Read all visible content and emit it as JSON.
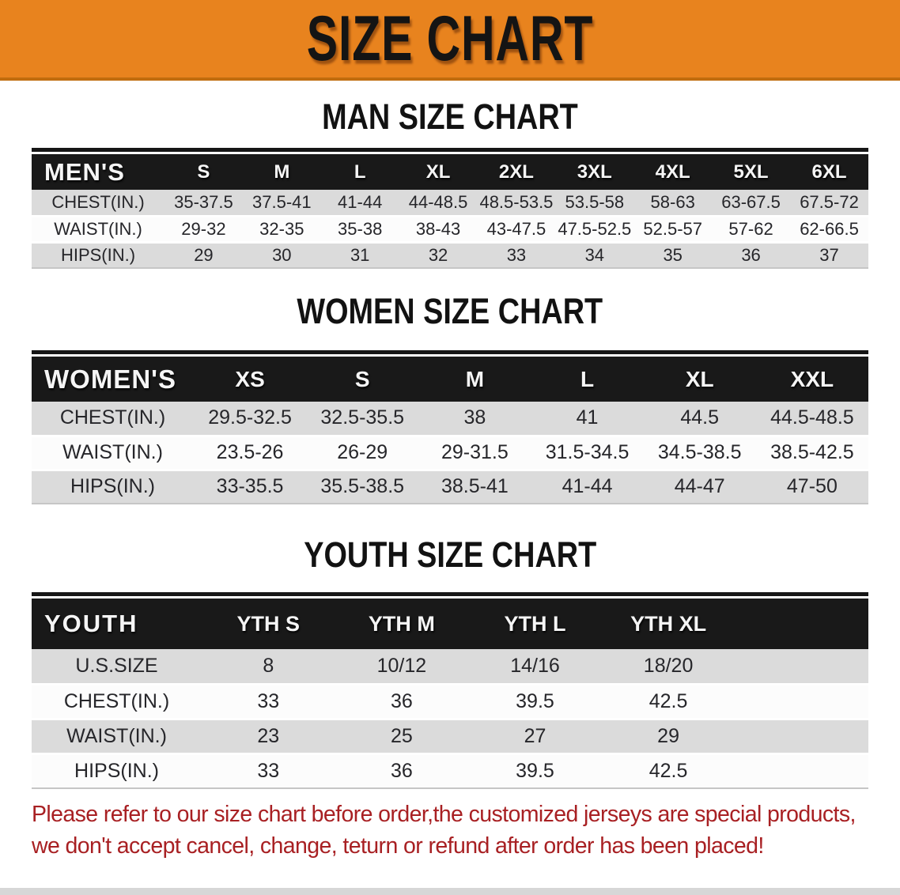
{
  "banner": {
    "title": "SIZE CHART"
  },
  "colors": {
    "banner_orange": "#E8831E",
    "header_black": "#191919",
    "stripe_gray": "#DBDBDB",
    "footer_red": "#A82023"
  },
  "sections": [
    {
      "heading": "MAN SIZE CHART",
      "group_label": "MEN'S",
      "columns": [
        "S",
        "M",
        "L",
        "XL",
        "2XL",
        "3XL",
        "4XL",
        "5XL",
        "6XL"
      ],
      "trailing_empty_column": false,
      "rows": [
        {
          "label": "CHEST(IN.)",
          "values": [
            "35-37.5",
            "37.5-41",
            "41-44",
            "44-48.5",
            "48.5-53.5",
            "53.5-58",
            "58-63",
            "63-67.5",
            "67.5-72"
          ]
        },
        {
          "label": "WAIST(IN.)",
          "values": [
            "29-32",
            "32-35",
            "35-38",
            "38-43",
            "43-47.5",
            "47.5-52.5",
            "52.5-57",
            "57-62",
            "62-66.5"
          ]
        },
        {
          "label": "HIPS(IN.)",
          "values": [
            "29",
            "30",
            "31",
            "32",
            "33",
            "34",
            "35",
            "36",
            "37"
          ]
        }
      ]
    },
    {
      "heading": "WOMEN SIZE CHART",
      "group_label": "WOMEN'S",
      "columns": [
        "XS",
        "S",
        "M",
        "L",
        "XL",
        "XXL"
      ],
      "trailing_empty_column": false,
      "rows": [
        {
          "label": "CHEST(IN.)",
          "values": [
            "29.5-32.5",
            "32.5-35.5",
            "38",
            "41",
            "44.5",
            "44.5-48.5"
          ]
        },
        {
          "label": "WAIST(IN.)",
          "values": [
            "23.5-26",
            "26-29",
            "29-31.5",
            "31.5-34.5",
            "34.5-38.5",
            "38.5-42.5"
          ]
        },
        {
          "label": "HIPS(IN.)",
          "values": [
            "33-35.5",
            "35.5-38.5",
            "38.5-41",
            "41-44",
            "44-47",
            "47-50"
          ]
        }
      ]
    },
    {
      "heading": "YOUTH SIZE CHART",
      "group_label": "YOUTH",
      "columns": [
        "YTH S",
        "YTH M",
        "YTH L",
        "YTH XL"
      ],
      "trailing_empty_column": true,
      "rows": [
        {
          "label": "U.S.SIZE",
          "values": [
            "8",
            "10/12",
            "14/16",
            "18/20"
          ]
        },
        {
          "label": "CHEST(IN.)",
          "values": [
            "33",
            "36",
            "39.5",
            "42.5"
          ]
        },
        {
          "label": "WAIST(IN.)",
          "values": [
            "23",
            "25",
            "27",
            "29"
          ]
        },
        {
          "label": "HIPS(IN.)",
          "values": [
            "33",
            "36",
            "39.5",
            "42.5"
          ]
        }
      ]
    }
  ],
  "footer": {
    "line1": "Please refer to our size chart before order,the customized jerseys are special products,",
    "line2": "we don't accept cancel, change, teturn or refund after order has been placed!"
  }
}
